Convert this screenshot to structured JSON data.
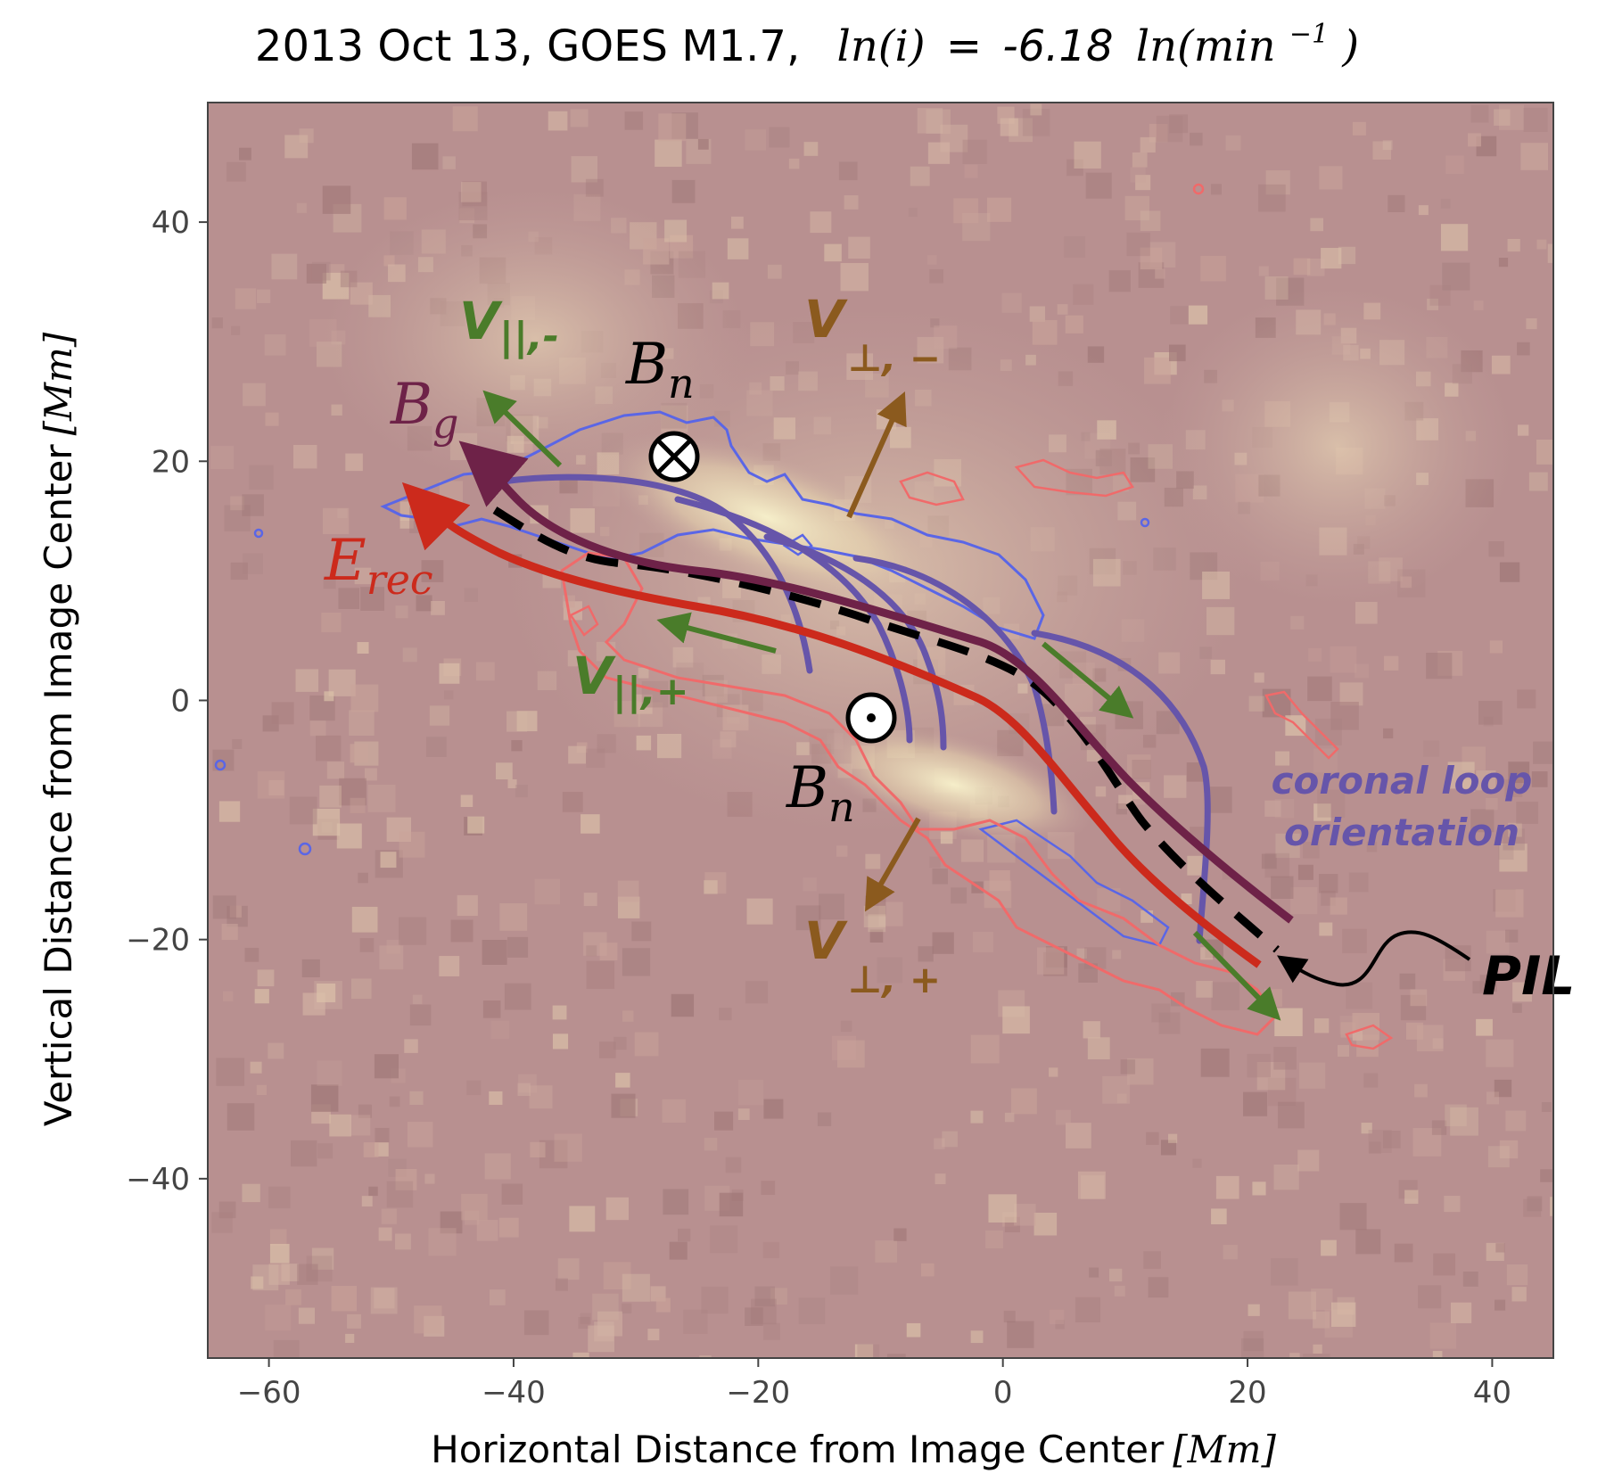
{
  "chart_data": {
    "type": "image",
    "title": {
      "prefix": "2013 Oct 13, GOES M1.7,",
      "lhs": "ln(i)",
      "eq": "=",
      "coef": "-6.18",
      "rhs": "ln(min",
      "rhs_sup": "−1",
      "rhs_close": ")"
    },
    "xlabel": "Horizontal Distance from Image Center",
    "ylabel": "Vertical Distance from Image Center",
    "unit": "[Mm]",
    "xlim": [
      -65,
      45
    ],
    "ylim": [
      -55,
      50
    ],
    "xticks": [
      -60,
      -40,
      -20,
      0,
      20,
      40
    ],
    "xtick_labels": [
      "−60",
      "−40",
      "−20",
      "0",
      "20",
      "40"
    ],
    "yticks": [
      40,
      20,
      0,
      -20,
      -40
    ],
    "ytick_labels": [
      "40",
      "20",
      "0",
      "−20",
      "−40"
    ],
    "annotations": {
      "bn_top": {
        "base": "B",
        "sub": "n"
      },
      "bn_bottom": {
        "base": "B",
        "sub": "n"
      },
      "bg": {
        "base": "B",
        "sub": "g"
      },
      "erec": {
        "base": "E",
        "sub": "rec"
      },
      "vpar_minus": {
        "base": "V",
        "sub": "||,-"
      },
      "vpar_plus": {
        "base": "V",
        "sub": "||,+"
      },
      "vperp_minus": {
        "base": "V",
        "sub": "⊥, −"
      },
      "vperp_plus": {
        "base": "V",
        "sub": "⊥, +"
      },
      "coronal_1": "coronal loop",
      "coronal_2": "orientation",
      "pil": "PIL"
    },
    "colors": {
      "background": "#b89090",
      "bright": "#f4ecc4",
      "ribbon_red": "#f06a6a",
      "ribbon_blue": "#5a66e6",
      "e_rec": "#cc2a1c",
      "b_g": "#6e2248",
      "v_parallel": "#4a7c2a",
      "v_perp": "#8b5a1e",
      "coronal_loop": "#6655aa",
      "pil": "#000000"
    }
  }
}
